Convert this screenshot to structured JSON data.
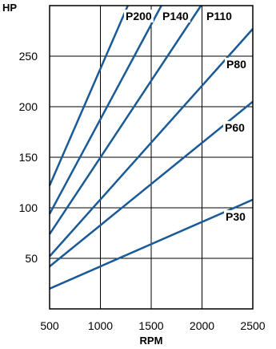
{
  "chart_data": {
    "type": "line",
    "title": "",
    "xlabel": "RPM",
    "ylabel": "HP",
    "xlim": [
      500,
      2500
    ],
    "ylim": [
      0,
      300
    ],
    "x_ticks": [
      500,
      1000,
      1500,
      2000,
      2500
    ],
    "y_ticks": [
      50,
      100,
      150,
      200,
      250
    ],
    "grid": true,
    "line_color": "#1a5a96",
    "series": [
      {
        "name": "P30",
        "points": [
          [
            500,
            20
          ],
          [
            2500,
            108
          ]
        ]
      },
      {
        "name": "P60",
        "points": [
          [
            500,
            42
          ],
          [
            2500,
            205
          ]
        ]
      },
      {
        "name": "P80",
        "points": [
          [
            500,
            52
          ],
          [
            2500,
            277
          ]
        ]
      },
      {
        "name": "P110",
        "points": [
          [
            500,
            74
          ],
          [
            1990,
            300
          ]
        ]
      },
      {
        "name": "P140",
        "points": [
          [
            500,
            94
          ],
          [
            1600,
            300
          ]
        ]
      },
      {
        "name": "P200",
        "points": [
          [
            500,
            122
          ],
          [
            1270,
            300
          ]
        ]
      }
    ]
  }
}
